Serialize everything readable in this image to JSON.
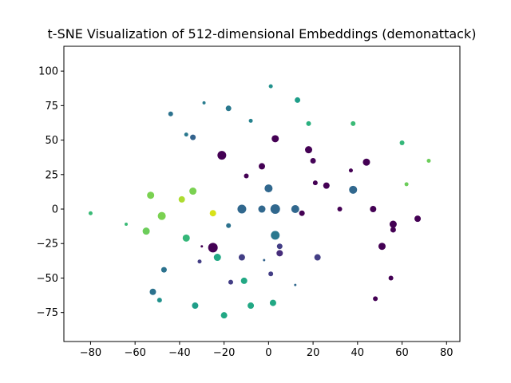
{
  "chart_data": {
    "type": "scatter",
    "title": "t-SNE Visualization of 512-dimensional Embeddings (demonattack)",
    "xlabel": "",
    "ylabel": "",
    "xlim": [
      -92,
      86
    ],
    "ylim": [
      -96,
      118
    ],
    "xticks": [
      -80,
      -60,
      -40,
      -20,
      0,
      20,
      40,
      60,
      80
    ],
    "yticks": [
      -75,
      -50,
      -25,
      0,
      25,
      50,
      75,
      100
    ],
    "xtick_labels": [
      "−80",
      "−60",
      "−40",
      "−20",
      "0",
      "20",
      "40",
      "60",
      "80"
    ],
    "ytick_labels": [
      "−75",
      "−50",
      "−25",
      "0",
      "25",
      "50",
      "75",
      "100"
    ],
    "grid": false,
    "colormap": "viridis",
    "points": [
      {
        "x": 1,
        "y": 89,
        "size": 4,
        "color": "#21918c"
      },
      {
        "x": 13,
        "y": 79,
        "size": 6,
        "color": "#1f9e89"
      },
      {
        "x": -18,
        "y": 73,
        "size": 6,
        "color": "#2a788e"
      },
      {
        "x": -29,
        "y": 77,
        "size": 3,
        "color": "#287c8e"
      },
      {
        "x": -44,
        "y": 69,
        "size": 5,
        "color": "#2c728e"
      },
      {
        "x": -8,
        "y": 64,
        "size": 4,
        "color": "#26828e"
      },
      {
        "x": 18,
        "y": 62,
        "size": 5,
        "color": "#2ab07f"
      },
      {
        "x": 38,
        "y": 62,
        "size": 5,
        "color": "#3aba76"
      },
      {
        "x": -37,
        "y": 54,
        "size": 4,
        "color": "#2a788e"
      },
      {
        "x": -34,
        "y": 52,
        "size": 6,
        "color": "#33638d"
      },
      {
        "x": 3,
        "y": 51,
        "size": 8,
        "color": "#440154"
      },
      {
        "x": 60,
        "y": 48,
        "size": 5,
        "color": "#35b779"
      },
      {
        "x": 18,
        "y": 43,
        "size": 8,
        "color": "#440154"
      },
      {
        "x": -21,
        "y": 39,
        "size": 10,
        "color": "#440154"
      },
      {
        "x": 20,
        "y": 35,
        "size": 6,
        "color": "#450457"
      },
      {
        "x": 44,
        "y": 34,
        "size": 8,
        "color": "#440154"
      },
      {
        "x": 72,
        "y": 35,
        "size": 4,
        "color": "#6ccd5a"
      },
      {
        "x": -3,
        "y": 31,
        "size": 7,
        "color": "#440154"
      },
      {
        "x": 37,
        "y": 28,
        "size": 4,
        "color": "#440154"
      },
      {
        "x": -10,
        "y": 24,
        "size": 5,
        "color": "#440154"
      },
      {
        "x": 21,
        "y": 19,
        "size": 5,
        "color": "#440154"
      },
      {
        "x": 26,
        "y": 17,
        "size": 7,
        "color": "#440154"
      },
      {
        "x": 62,
        "y": 18,
        "size": 4,
        "color": "#6ccd5a"
      },
      {
        "x": 0,
        "y": 15,
        "size": 9,
        "color": "#31688e"
      },
      {
        "x": 38,
        "y": 14,
        "size": 9,
        "color": "#31688e"
      },
      {
        "x": -34,
        "y": 13,
        "size": 8,
        "color": "#7ad151"
      },
      {
        "x": -53,
        "y": 10,
        "size": 8,
        "color": "#7ad151"
      },
      {
        "x": -39,
        "y": 7,
        "size": 7,
        "color": "#addc30"
      },
      {
        "x": -12,
        "y": 0,
        "size": 10,
        "color": "#31688e"
      },
      {
        "x": -3,
        "y": 0,
        "size": 8,
        "color": "#31688e"
      },
      {
        "x": 3,
        "y": 0,
        "size": 11,
        "color": "#31688e"
      },
      {
        "x": 12,
        "y": 0,
        "size": 9,
        "color": "#31688e"
      },
      {
        "x": 32,
        "y": 0,
        "size": 5,
        "color": "#440154"
      },
      {
        "x": 47,
        "y": 0,
        "size": 7,
        "color": "#440154"
      },
      {
        "x": 15,
        "y": -3,
        "size": 6,
        "color": "#440154"
      },
      {
        "x": -80,
        "y": -3,
        "size": 4,
        "color": "#3aba76"
      },
      {
        "x": -25,
        "y": -3,
        "size": 7,
        "color": "#d8e219"
      },
      {
        "x": -48,
        "y": -5,
        "size": 9,
        "color": "#7ad151"
      },
      {
        "x": 67,
        "y": -7,
        "size": 7,
        "color": "#440154"
      },
      {
        "x": -64,
        "y": -11,
        "size": 3,
        "color": "#3aba76"
      },
      {
        "x": 56,
        "y": -11,
        "size": 8,
        "color": "#440154"
      },
      {
        "x": 56,
        "y": -15,
        "size": 6,
        "color": "#440154"
      },
      {
        "x": -18,
        "y": -12,
        "size": 5,
        "color": "#2c728e"
      },
      {
        "x": -55,
        "y": -16,
        "size": 8,
        "color": "#6ccd5a"
      },
      {
        "x": 3,
        "y": -19,
        "size": 10,
        "color": "#2a788e"
      },
      {
        "x": -37,
        "y": -21,
        "size": 8,
        "color": "#35b779"
      },
      {
        "x": 5,
        "y": -27,
        "size": 6,
        "color": "#433e85"
      },
      {
        "x": 51,
        "y": -27,
        "size": 8,
        "color": "#440154"
      },
      {
        "x": -25,
        "y": -28,
        "size": 11,
        "color": "#440154"
      },
      {
        "x": -30,
        "y": -27,
        "size": 2,
        "color": "#440154"
      },
      {
        "x": 5,
        "y": -32,
        "size": 7,
        "color": "#472d7b"
      },
      {
        "x": -23,
        "y": -35,
        "size": 8,
        "color": "#22a884"
      },
      {
        "x": -12,
        "y": -35,
        "size": 7,
        "color": "#433e85"
      },
      {
        "x": 22,
        "y": -35,
        "size": 7,
        "color": "#433e85"
      },
      {
        "x": -2,
        "y": -37,
        "size": 2,
        "color": "#33638d"
      },
      {
        "x": -31,
        "y": -38,
        "size": 4,
        "color": "#433e85"
      },
      {
        "x": -47,
        "y": -44,
        "size": 6,
        "color": "#2c728e"
      },
      {
        "x": 1,
        "y": -47,
        "size": 5,
        "color": "#433e85"
      },
      {
        "x": 55,
        "y": -50,
        "size": 5,
        "color": "#440154"
      },
      {
        "x": -17,
        "y": -53,
        "size": 5,
        "color": "#433e85"
      },
      {
        "x": -11,
        "y": -52,
        "size": 7,
        "color": "#22a884"
      },
      {
        "x": 12,
        "y": -55,
        "size": 2,
        "color": "#31688e"
      },
      {
        "x": -52,
        "y": -60,
        "size": 7,
        "color": "#2c728e"
      },
      {
        "x": 48,
        "y": -65,
        "size": 5,
        "color": "#440154"
      },
      {
        "x": -49,
        "y": -66,
        "size": 5,
        "color": "#21918c"
      },
      {
        "x": 2,
        "y": -68,
        "size": 7,
        "color": "#22a884"
      },
      {
        "x": -33,
        "y": -70,
        "size": 7,
        "color": "#1f9e89"
      },
      {
        "x": -8,
        "y": -70,
        "size": 7,
        "color": "#22a884"
      },
      {
        "x": -20,
        "y": -77,
        "size": 7,
        "color": "#22a884"
      }
    ]
  }
}
